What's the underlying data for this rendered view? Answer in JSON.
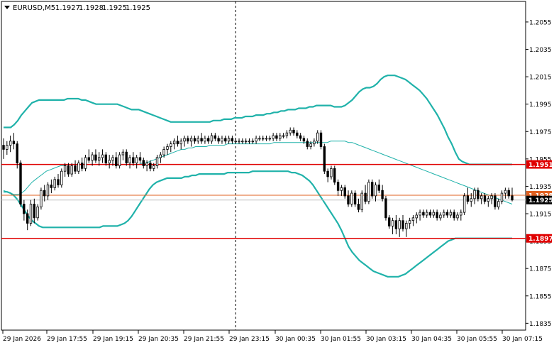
{
  "header": {
    "symbol": "EURUSD,M5",
    "ohlc": [
      "1.1927",
      "1.1928",
      "1.1925",
      "1.1925"
    ]
  },
  "chart_data": {
    "type": "candlestick",
    "symbol": "EURUSD",
    "timeframe": "M5",
    "ylim": [
      1.183,
      1.207
    ],
    "y_ticks": [
      "1.2055",
      "1.2035",
      "1.2015",
      "1.1995",
      "1.1975",
      "1.1955",
      "1.1935",
      "1.1915",
      "1.1895",
      "1.1875",
      "1.1855",
      "1.1835"
    ],
    "x_ticks": [
      "29 Jan 2026",
      "29 Jan 17:55",
      "29 Jan 19:15",
      "29 Jan 20:35",
      "29 Jan 21:55",
      "29 Jan 23:15",
      "30 Jan 00:35",
      "30 Jan 01:55",
      "30 Jan 03:15",
      "30 Jan 04:35",
      "30 Jan 05:55",
      "30 Jan 07:15"
    ],
    "horizontal_lines": [
      {
        "label": "1.1951",
        "value": 1.1951,
        "color": "#e00000"
      },
      {
        "label": "1.1928",
        "value": 1.19285,
        "color": "#e06020"
      },
      {
        "label": "1.1925",
        "value": 1.1925,
        "color": "#000000"
      },
      {
        "label": "1.1897",
        "value": 1.1897,
        "color": "#e00000"
      }
    ],
    "period_separator_index": 68,
    "indicator": "Bollinger Bands",
    "band_color": "#20b2aa",
    "candles": [
      [
        1.1965,
        1.197,
        1.1955,
        1.1962
      ],
      [
        1.1962,
        1.1968,
        1.1958,
        1.1965
      ],
      [
        1.1965,
        1.1972,
        1.196,
        1.1968
      ],
      [
        1.1968,
        1.1974,
        1.1962,
        1.1966
      ],
      [
        1.1966,
        1.1968,
        1.1948,
        1.1952
      ],
      [
        1.1952,
        1.1954,
        1.192,
        1.1922
      ],
      [
        1.1922,
        1.1925,
        1.191,
        1.1915
      ],
      [
        1.1915,
        1.1918,
        1.1903,
        1.1908
      ],
      [
        1.1908,
        1.1925,
        1.1906,
        1.1922
      ],
      [
        1.1922,
        1.1926,
        1.1908,
        1.1912
      ],
      [
        1.1912,
        1.1922,
        1.191,
        1.192
      ],
      [
        1.192,
        1.1934,
        1.1918,
        1.1932
      ],
      [
        1.1932,
        1.1936,
        1.1924,
        1.1928
      ],
      [
        1.1928,
        1.1938,
        1.1925,
        1.1936
      ],
      [
        1.1936,
        1.194,
        1.193,
        1.1934
      ],
      [
        1.1934,
        1.1942,
        1.1932,
        1.194
      ],
      [
        1.194,
        1.1944,
        1.1934,
        1.1936
      ],
      [
        1.1936,
        1.1948,
        1.1934,
        1.1946
      ],
      [
        1.1946,
        1.1952,
        1.1942,
        1.195
      ],
      [
        1.195,
        1.1952,
        1.1942,
        1.1944
      ],
      [
        1.1944,
        1.1952,
        1.1942,
        1.195
      ],
      [
        1.195,
        1.1954,
        1.1944,
        1.1946
      ],
      [
        1.1946,
        1.1954,
        1.1944,
        1.1952
      ],
      [
        1.1952,
        1.1956,
        1.1946,
        1.1948
      ],
      [
        1.1948,
        1.1958,
        1.1946,
        1.1956
      ],
      [
        1.1956,
        1.1962,
        1.1952,
        1.1954
      ],
      [
        1.1954,
        1.196,
        1.195,
        1.1958
      ],
      [
        1.1958,
        1.1962,
        1.1952,
        1.1954
      ],
      [
        1.1954,
        1.196,
        1.195,
        1.1956
      ],
      [
        1.1956,
        1.1962,
        1.1952,
        1.1958
      ],
      [
        1.1958,
        1.196,
        1.195,
        1.1952
      ],
      [
        1.1952,
        1.1958,
        1.1948,
        1.1954
      ],
      [
        1.1954,
        1.1958,
        1.195,
        1.1956
      ],
      [
        1.1956,
        1.196,
        1.1948,
        1.195
      ],
      [
        1.195,
        1.196,
        1.1948,
        1.1958
      ],
      [
        1.1958,
        1.1962,
        1.1954,
        1.196
      ],
      [
        1.196,
        1.1962,
        1.195,
        1.1952
      ],
      [
        1.1952,
        1.1958,
        1.1948,
        1.1956
      ],
      [
        1.1956,
        1.196,
        1.195,
        1.1952
      ],
      [
        1.1952,
        1.1958,
        1.1948,
        1.1956
      ],
      [
        1.1956,
        1.196,
        1.1952,
        1.1954
      ],
      [
        1.1954,
        1.1956,
        1.1948,
        1.195
      ],
      [
        1.195,
        1.1954,
        1.1946,
        1.1952
      ],
      [
        1.1952,
        1.1954,
        1.1946,
        1.1948
      ],
      [
        1.1948,
        1.1952,
        1.1946,
        1.195
      ],
      [
        1.195,
        1.1958,
        1.1948,
        1.1956
      ],
      [
        1.1956,
        1.196,
        1.1952,
        1.1958
      ],
      [
        1.1958,
        1.1964,
        1.1956,
        1.1962
      ],
      [
        1.1962,
        1.1966,
        1.1958,
        1.1964
      ],
      [
        1.1964,
        1.1968,
        1.196,
        1.1966
      ],
      [
        1.1966,
        1.197,
        1.1962,
        1.1968
      ],
      [
        1.1968,
        1.1972,
        1.1964,
        1.1966
      ],
      [
        1.1966,
        1.197,
        1.1962,
        1.1968
      ],
      [
        1.1968,
        1.1972,
        1.1964,
        1.197
      ],
      [
        1.197,
        1.1972,
        1.1966,
        1.1968
      ],
      [
        1.1968,
        1.1972,
        1.1964,
        1.197
      ],
      [
        1.197,
        1.1972,
        1.1966,
        1.1968
      ],
      [
        1.1968,
        1.1972,
        1.1966,
        1.197
      ],
      [
        1.197,
        1.1974,
        1.1966,
        1.1968
      ],
      [
        1.1968,
        1.1972,
        1.1966,
        1.197
      ],
      [
        1.197,
        1.1972,
        1.1966,
        1.1968
      ],
      [
        1.1968,
        1.1974,
        1.1966,
        1.1972
      ],
      [
        1.1972,
        1.1974,
        1.1968,
        1.197
      ],
      [
        1.197,
        1.1972,
        1.1966,
        1.1968
      ],
      [
        1.1968,
        1.1972,
        1.1966,
        1.197
      ],
      [
        1.197,
        1.1972,
        1.1966,
        1.1968
      ],
      [
        1.1968,
        1.1972,
        1.1966,
        1.197
      ],
      [
        1.197,
        1.1972,
        1.1966,
        1.1968
      ],
      [
        1.1968,
        1.197,
        1.1966,
        1.1968
      ],
      [
        1.1968,
        1.197,
        1.1966,
        1.1968
      ],
      [
        1.1968,
        1.197,
        1.1966,
        1.1968
      ],
      [
        1.1968,
        1.197,
        1.1966,
        1.1968
      ],
      [
        1.1968,
        1.197,
        1.1966,
        1.1968
      ],
      [
        1.1968,
        1.197,
        1.1966,
        1.1968
      ],
      [
        1.1968,
        1.1972,
        1.1966,
        1.197
      ],
      [
        1.197,
        1.1972,
        1.1968,
        1.197
      ],
      [
        1.197,
        1.1972,
        1.1968,
        1.197
      ],
      [
        1.197,
        1.1972,
        1.1968,
        1.197
      ],
      [
        1.197,
        1.1972,
        1.1968,
        1.197
      ],
      [
        1.197,
        1.1974,
        1.1968,
        1.1972
      ],
      [
        1.1972,
        1.1974,
        1.1968,
        1.197
      ],
      [
        1.197,
        1.1974,
        1.1968,
        1.1972
      ],
      [
        1.1972,
        1.1974,
        1.197,
        1.1972
      ],
      [
        1.1972,
        1.1976,
        1.197,
        1.1974
      ],
      [
        1.1974,
        1.1978,
        1.1972,
        1.1976
      ],
      [
        1.1976,
        1.1978,
        1.1972,
        1.1974
      ],
      [
        1.1974,
        1.1976,
        1.197,
        1.1972
      ],
      [
        1.1972,
        1.1974,
        1.1968,
        1.197
      ],
      [
        1.197,
        1.1972,
        1.1966,
        1.1968
      ],
      [
        1.1968,
        1.197,
        1.1962,
        1.1964
      ],
      [
        1.1964,
        1.1968,
        1.1962,
        1.1966
      ],
      [
        1.1966,
        1.197,
        1.1964,
        1.1968
      ],
      [
        1.1968,
        1.1976,
        1.1966,
        1.1974
      ],
      [
        1.1974,
        1.1976,
        1.1962,
        1.1964
      ],
      [
        1.1964,
        1.1966,
        1.1944,
        1.1946
      ],
      [
        1.1946,
        1.1948,
        1.1938,
        1.1942
      ],
      [
        1.1942,
        1.195,
        1.194,
        1.1948
      ],
      [
        1.1948,
        1.195,
        1.1936,
        1.1938
      ],
      [
        1.1938,
        1.194,
        1.1928,
        1.1932
      ],
      [
        1.1932,
        1.1936,
        1.1928,
        1.1934
      ],
      [
        1.1934,
        1.1936,
        1.1926,
        1.1928
      ],
      [
        1.1928,
        1.1932,
        1.192,
        1.1922
      ],
      [
        1.1922,
        1.1932,
        1.192,
        1.193
      ],
      [
        1.193,
        1.1932,
        1.192,
        1.1922
      ],
      [
        1.1922,
        1.1926,
        1.1916,
        1.1918
      ],
      [
        1.1918,
        1.1932,
        1.1916,
        1.193
      ],
      [
        1.193,
        1.1936,
        1.1922,
        1.1924
      ],
      [
        1.1924,
        1.194,
        1.1922,
        1.1938
      ],
      [
        1.1938,
        1.194,
        1.1926,
        1.1928
      ],
      [
        1.1928,
        1.1938,
        1.1924,
        1.1936
      ],
      [
        1.1936,
        1.194,
        1.193,
        1.1932
      ],
      [
        1.1932,
        1.1936,
        1.1924,
        1.1926
      ],
      [
        1.1926,
        1.1928,
        1.191,
        1.1912
      ],
      [
        1.1912,
        1.1914,
        1.1904,
        1.1906
      ],
      [
        1.1906,
        1.1912,
        1.19,
        1.191
      ],
      [
        1.191,
        1.1914,
        1.19,
        1.1904
      ],
      [
        1.1904,
        1.1912,
        1.1898,
        1.191
      ],
      [
        1.191,
        1.1914,
        1.1902,
        1.1904
      ],
      [
        1.1904,
        1.191,
        1.1898,
        1.1908
      ],
      [
        1.1908,
        1.1912,
        1.1904,
        1.191
      ],
      [
        1.191,
        1.1914,
        1.1906,
        1.1912
      ],
      [
        1.1912,
        1.1916,
        1.1908,
        1.1914
      ],
      [
        1.1914,
        1.1918,
        1.191,
        1.1916
      ],
      [
        1.1916,
        1.1918,
        1.1912,
        1.1914
      ],
      [
        1.1914,
        1.1918,
        1.1912,
        1.1916
      ],
      [
        1.1916,
        1.1918,
        1.1912,
        1.1914
      ],
      [
        1.1914,
        1.1918,
        1.1912,
        1.1916
      ],
      [
        1.1916,
        1.1918,
        1.191,
        1.1912
      ],
      [
        1.1912,
        1.1916,
        1.191,
        1.1914
      ],
      [
        1.1914,
        1.1918,
        1.1912,
        1.1916
      ],
      [
        1.1916,
        1.1918,
        1.1912,
        1.1914
      ],
      [
        1.1914,
        1.1918,
        1.1912,
        1.1916
      ],
      [
        1.1916,
        1.1918,
        1.191,
        1.1912
      ],
      [
        1.1912,
        1.1916,
        1.191,
        1.1914
      ],
      [
        1.1914,
        1.1918,
        1.191,
        1.1916
      ],
      [
        1.1916,
        1.193,
        1.1914,
        1.1928
      ],
      [
        1.1928,
        1.1934,
        1.1922,
        1.1924
      ],
      [
        1.1924,
        1.193,
        1.192,
        1.1926
      ],
      [
        1.1926,
        1.1934,
        1.1922,
        1.1932
      ],
      [
        1.1932,
        1.1934,
        1.1924,
        1.1926
      ],
      [
        1.1926,
        1.193,
        1.1922,
        1.1928
      ],
      [
        1.1928,
        1.193,
        1.1922,
        1.1924
      ],
      [
        1.1924,
        1.1928,
        1.192,
        1.1926
      ],
      [
        1.1926,
        1.193,
        1.1922,
        1.1928
      ],
      [
        1.1928,
        1.193,
        1.1918,
        1.192
      ],
      [
        1.192,
        1.1926,
        1.1918,
        1.1924
      ],
      [
        1.1924,
        1.1932,
        1.1922,
        1.193
      ],
      [
        1.193,
        1.1934,
        1.1926,
        1.1932
      ],
      [
        1.1932,
        1.1934,
        1.1926,
        1.1928
      ],
      [
        1.1928,
        1.1934,
        1.1924,
        1.1925
      ]
    ],
    "middle_band": [
      1.1932,
      1.1931,
      1.193,
      1.1929,
      1.1929,
      1.193,
      1.1932,
      1.1935,
      1.1938,
      1.194,
      1.1942,
      1.1944,
      1.1946,
      1.1947,
      1.1948,
      1.1949,
      1.195,
      1.195,
      1.1951,
      1.1951,
      1.1951,
      1.1951,
      1.1951,
      1.1951,
      1.1951,
      1.1951,
      1.1951,
      1.1951,
      1.1951,
      1.1951,
      1.1951,
      1.1951,
      1.1951,
      1.1951,
      1.1951,
      1.1951,
      1.1951,
      1.1951,
      1.1951,
      1.1952,
      1.1952,
      1.1953,
      1.1954,
      1.1955,
      1.1956,
      1.1957,
      1.1958,
      1.1959,
      1.196,
      1.1961,
      1.1962,
      1.1962,
      1.1963,
      1.1963,
      1.1964,
      1.1964,
      1.1964,
      1.1964,
      1.1965,
      1.1965,
      1.1965,
      1.1965,
      1.1965,
      1.1966,
      1.1966,
      1.1966,
      1.1966,
      1.1966,
      1.1966,
      1.1966,
      1.1966,
      1.1966,
      1.1966,
      1.1966,
      1.1966,
      1.1966,
      1.1967,
      1.1967,
      1.1967,
      1.1967,
      1.1967,
      1.1967,
      1.1967,
      1.1967,
      1.1967,
      1.1967,
      1.1967,
      1.1967,
      1.1967,
      1.1967,
      1.1967,
      1.1967,
      1.1968,
      1.1968,
      1.1968,
      1.1968,
      1.1968,
      1.1967,
      1.1967,
      1.1966,
      1.1965,
      1.1964,
      1.1963,
      1.1962,
      1.1961,
      1.196,
      1.1959,
      1.1958,
      1.1957,
      1.1956,
      1.1955,
      1.1954,
      1.1953,
      1.1952,
      1.1951,
      1.195,
      1.1949,
      1.1948,
      1.1947,
      1.1946,
      1.1945,
      1.1944,
      1.1943,
      1.1942,
      1.1941,
      1.194,
      1.1939,
      1.1938,
      1.1937,
      1.1936,
      1.1935,
      1.1934,
      1.1933,
      1.1932,
      1.1931,
      1.193,
      1.1929,
      1.1928,
      1.1927,
      1.1926,
      1.1925,
      1.1924,
      1.1923,
      1.1922
    ],
    "upper_band": [
      1.1978,
      1.1978,
      1.1978,
      1.198,
      1.1983,
      1.1987,
      1.199,
      1.1993,
      1.1996,
      1.1997,
      1.1998,
      1.1998,
      1.1998,
      1.1998,
      1.1998,
      1.1998,
      1.1998,
      1.1998,
      1.1999,
      1.1999,
      1.1999,
      1.1999,
      1.1998,
      1.1998,
      1.1997,
      1.1996,
      1.1995,
      1.1995,
      1.1995,
      1.1995,
      1.1995,
      1.1995,
      1.1995,
      1.1994,
      1.1993,
      1.1992,
      1.1991,
      1.1991,
      1.1991,
      1.199,
      1.1989,
      1.1988,
      1.1987,
      1.1986,
      1.1985,
      1.1984,
      1.1983,
      1.1982,
      1.1982,
      1.1982,
      1.1982,
      1.1982,
      1.1982,
      1.1982,
      1.1982,
      1.1982,
      1.1982,
      1.1982,
      1.1982,
      1.1983,
      1.1983,
      1.1983,
      1.1984,
      1.1984,
      1.1984,
      1.1985,
      1.1985,
      1.1985,
      1.1986,
      1.1986,
      1.1986,
      1.1987,
      1.1987,
      1.1987,
      1.1988,
      1.1988,
      1.1989,
      1.1989,
      1.199,
      1.199,
      1.1991,
      1.1991,
      1.1991,
      1.1992,
      1.1992,
      1.1992,
      1.1993,
      1.1993,
      1.1994,
      1.1994,
      1.1994,
      1.1994,
      1.1994,
      1.1993,
      1.1993,
      1.1993,
      1.1994,
      1.1996,
      1.1998,
      1.2001,
      1.2004,
      1.2006,
      1.2007,
      1.2007,
      1.2008,
      1.201,
      1.2013,
      1.2015,
      1.2016,
      1.2016,
      1.2016,
      1.2015,
      1.2014,
      1.2013,
      1.2011,
      1.2009,
      1.2007,
      1.2005,
      1.2002,
      1.1999,
      1.1995,
      1.1991,
      1.1987,
      1.1982,
      1.1977,
      1.1971,
      1.1966,
      1.196,
      1.1955,
      1.1953,
      1.1952,
      1.1951,
      1.1951,
      1.1951,
      1.1951,
      1.1951,
      1.1951,
      1.1951,
      1.1951,
      1.1951,
      1.1951,
      1.1951,
      1.1951,
      1.1951
    ],
    "lower_band": [
      1.1931,
      1.1931,
      1.193,
      1.1928,
      1.1925,
      1.1921,
      1.1917,
      1.1913,
      1.191,
      1.1908,
      1.1906,
      1.1905,
      1.1905,
      1.1905,
      1.1905,
      1.1905,
      1.1905,
      1.1905,
      1.1905,
      1.1905,
      1.1905,
      1.1905,
      1.1905,
      1.1905,
      1.1905,
      1.1905,
      1.1905,
      1.1905,
      1.1906,
      1.1906,
      1.1906,
      1.1906,
      1.1906,
      1.1907,
      1.1908,
      1.191,
      1.1913,
      1.1917,
      1.1921,
      1.1925,
      1.1929,
      1.1933,
      1.1936,
      1.1938,
      1.1939,
      1.194,
      1.1941,
      1.1941,
      1.1941,
      1.1941,
      1.1941,
      1.1942,
      1.1942,
      1.1943,
      1.1943,
      1.1944,
      1.1944,
      1.1944,
      1.1944,
      1.1944,
      1.1944,
      1.1944,
      1.1944,
      1.1945,
      1.1945,
      1.1945,
      1.1945,
      1.1945,
      1.1945,
      1.1945,
      1.1946,
      1.1946,
      1.1946,
      1.1946,
      1.1946,
      1.1946,
      1.1946,
      1.1946,
      1.1946,
      1.1946,
      1.1946,
      1.1945,
      1.1945,
      1.1944,
      1.1943,
      1.1941,
      1.1939,
      1.1936,
      1.1932,
      1.1928,
      1.1924,
      1.192,
      1.1916,
      1.1912,
      1.1908,
      1.1903,
      1.1897,
      1.1891,
      1.1887,
      1.1884,
      1.1881,
      1.1879,
      1.1877,
      1.1875,
      1.1873,
      1.1872,
      1.1871,
      1.187,
      1.1869,
      1.1869,
      1.1869,
      1.1869,
      1.187,
      1.1871,
      1.1873,
      1.1875,
      1.1877,
      1.1879,
      1.1881,
      1.1883,
      1.1885,
      1.1887,
      1.1889,
      1.1891,
      1.1893,
      1.1895,
      1.1896,
      1.1897,
      1.1897,
      1.1897,
      1.1897,
      1.1897,
      1.1897,
      1.1897,
      1.1897,
      1.1897,
      1.1897,
      1.1897,
      1.1897,
      1.1897,
      1.1897,
      1.1897,
      1.1897,
      1.1897
    ]
  }
}
